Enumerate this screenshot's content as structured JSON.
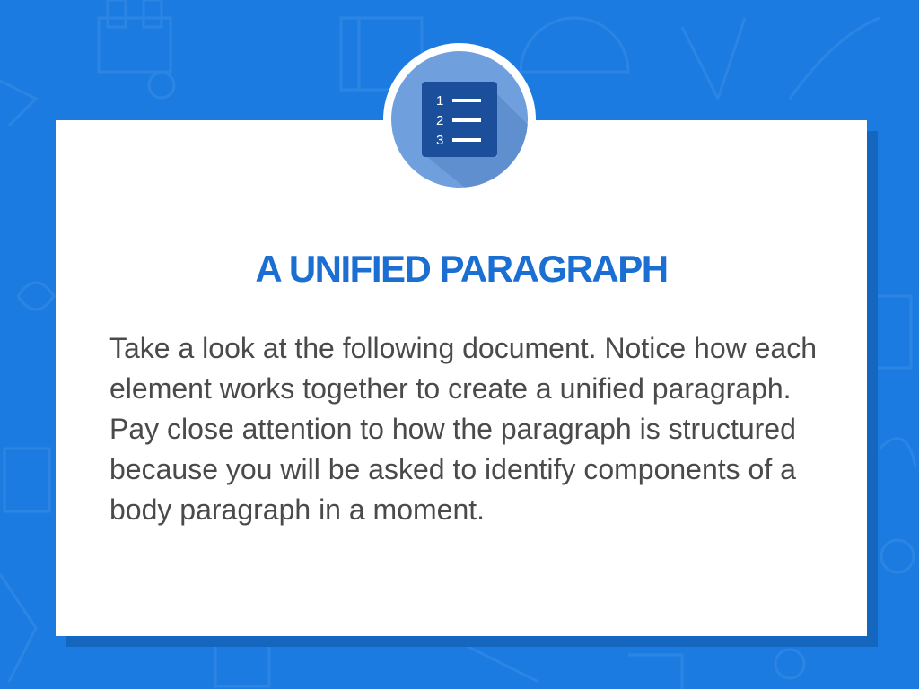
{
  "slide": {
    "title": "A UNIFIED PARAGRAPH",
    "body": "Take a look at the following document. Notice how each element works together to create a unified paragraph. Pay close attention to how the paragraph is structured because you will be asked to identify components of a body paragraph in a moment.",
    "icon": "numbered-list-icon",
    "icon_numbers": [
      "1",
      "2",
      "3"
    ]
  },
  "colors": {
    "background": "#1c7be0",
    "title": "#1b6fd3",
    "body_text": "#4a4a4a",
    "badge": "#6f9fdc",
    "icon_tile": "#1b4f9c"
  }
}
